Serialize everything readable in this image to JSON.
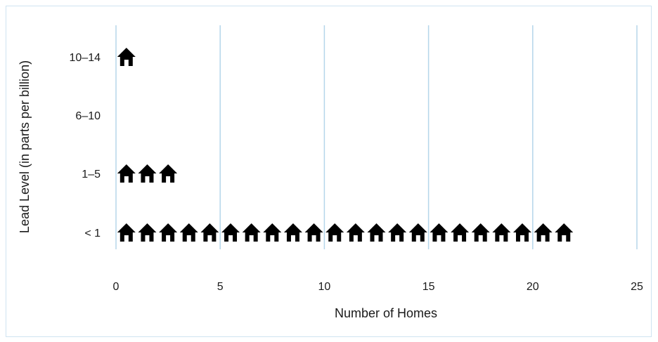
{
  "chart_data": {
    "type": "pictograph",
    "xlabel": "Number of Homes",
    "ylabel": "Lead Level (in parts per billion)",
    "xlim": [
      0,
      25
    ],
    "xticks": [
      0,
      5,
      10,
      15,
      20,
      25
    ],
    "categories": [
      "< 1",
      "1–5",
      "6–10",
      "10–14"
    ],
    "values": [
      22,
      3,
      0,
      1
    ],
    "icon": "house-icon",
    "icon_color": "#000000",
    "grid_color": "#b5d6ea",
    "vertical_grid": true
  }
}
